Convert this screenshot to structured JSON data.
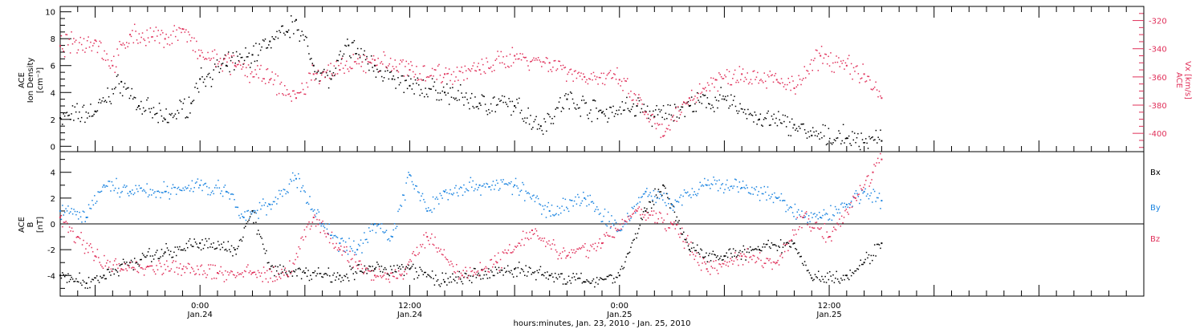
{
  "colors": {
    "black": "#000000",
    "blue": "#1b84e0",
    "red": "#e0305a",
    "axis": "#000000"
  },
  "xaxis": {
    "title": "hours:minutes, Jan. 23, 2010 - Jan. 25, 2010",
    "ticks": [
      {
        "time": "2010-01-24T00:00",
        "label1": "0:00",
        "label2": "Jan.24"
      },
      {
        "time": "2010-01-24T12:00",
        "label1": "12:00",
        "label2": "Jan.24"
      },
      {
        "time": "2010-01-25T00:00",
        "label1": "0:00",
        "label2": "Jan.25"
      },
      {
        "time": "2010-01-25T12:00",
        "label1": "12:00",
        "label2": "Jan.25"
      }
    ]
  },
  "chart_data": [
    {
      "type": "scatter",
      "panel": "top",
      "xrange": [
        "2010-01-23T16:00",
        "2010-01-26T06:00"
      ],
      "left_axis": {
        "label": [
          "ACE",
          "Ion Density",
          "[cm⁻³]"
        ],
        "range": [
          -0.4,
          10.4
        ],
        "ticks": [
          0,
          2,
          4,
          6,
          8,
          10
        ]
      },
      "right_axis": {
        "label": [
          "ACE",
          "Vx [km/s]"
        ],
        "range": [
          -413,
          -310
        ],
        "ticks": [
          -320,
          -340,
          -360,
          -380,
          -400
        ]
      },
      "series": [
        {
          "name": "",
          "axis": "left",
          "color": "black",
          "points": [
            [
              "2010-01-23T16:00",
              2.1
            ],
            [
              "2010-01-23T18:00",
              2.6
            ],
            [
              "2010-01-23T19:30",
              4.8
            ],
            [
              "2010-01-23T20:30",
              3.0
            ],
            [
              "2010-01-23T22:00",
              2.0
            ],
            [
              "2010-01-23T23:30",
              3.2
            ],
            [
              "2010-01-24T00:00",
              5.0
            ],
            [
              "2010-01-24T01:30",
              6.0
            ],
            [
              "2010-01-24T03:00",
              6.8
            ],
            [
              "2010-01-24T04:00",
              7.8
            ],
            [
              "2010-01-24T05:00",
              8.5
            ],
            [
              "2010-01-24T05:30",
              9.4
            ],
            [
              "2010-01-24T06:30",
              6.0
            ],
            [
              "2010-01-24T07:30",
              5.0
            ],
            [
              "2010-01-24T08:30",
              7.5
            ],
            [
              "2010-01-24T10:00",
              6.0
            ],
            [
              "2010-01-24T11:00",
              5.0
            ],
            [
              "2010-01-24T12:00",
              4.5
            ],
            [
              "2010-01-24T14:00",
              4.0
            ],
            [
              "2010-01-24T16:00",
              3.2
            ],
            [
              "2010-01-24T18:00",
              3.0
            ],
            [
              "2010-01-24T19:30",
              1.5
            ],
            [
              "2010-01-24T21:00",
              3.5
            ],
            [
              "2010-01-24T23:00",
              2.5
            ],
            [
              "2010-01-25T01:00",
              3.0
            ],
            [
              "2010-01-25T02:00",
              2.2
            ],
            [
              "2010-01-25T04:00",
              3.0
            ],
            [
              "2010-01-25T06:00",
              3.5
            ],
            [
              "2010-01-25T08:00",
              2.0
            ],
            [
              "2010-01-25T10:00",
              1.6
            ],
            [
              "2010-01-25T11:00",
              0.8
            ],
            [
              "2010-01-25T13:00",
              0.6
            ],
            [
              "2010-01-25T15:00",
              0.4
            ]
          ]
        },
        {
          "name": "",
          "axis": "right",
          "color": "red",
          "points": [
            [
              "2010-01-23T16:00",
              -338
            ],
            [
              "2010-01-23T18:00",
              -334
            ],
            [
              "2010-01-23T19:00",
              -352
            ],
            [
              "2010-01-23T20:00",
              -330
            ],
            [
              "2010-01-23T22:00",
              -333
            ],
            [
              "2010-01-23T23:00",
              -326
            ],
            [
              "2010-01-24T00:00",
              -345
            ],
            [
              "2010-01-24T02:00",
              -352
            ],
            [
              "2010-01-24T04:00",
              -362
            ],
            [
              "2010-01-24T05:30",
              -375
            ],
            [
              "2010-01-24T06:30",
              -358
            ],
            [
              "2010-01-24T08:00",
              -355
            ],
            [
              "2010-01-24T10:00",
              -348
            ],
            [
              "2010-01-24T12:00",
              -355
            ],
            [
              "2010-01-24T14:00",
              -358
            ],
            [
              "2010-01-24T16:00",
              -355
            ],
            [
              "2010-01-24T18:00",
              -345
            ],
            [
              "2010-01-24T20:00",
              -350
            ],
            [
              "2010-01-24T22:00",
              -360
            ],
            [
              "2010-01-25T00:00",
              -362
            ],
            [
              "2010-01-25T01:30",
              -385
            ],
            [
              "2010-01-25T02:30",
              -402
            ],
            [
              "2010-01-25T04:00",
              -375
            ],
            [
              "2010-01-25T05:30",
              -362
            ],
            [
              "2010-01-25T07:00",
              -358
            ],
            [
              "2010-01-25T09:00",
              -362
            ],
            [
              "2010-01-25T10:00",
              -368
            ],
            [
              "2010-01-25T11:30",
              -345
            ],
            [
              "2010-01-25T13:00",
              -352
            ],
            [
              "2010-01-25T14:00",
              -358
            ],
            [
              "2010-01-25T15:00",
              -375
            ]
          ]
        }
      ]
    },
    {
      "type": "scatter",
      "panel": "bottom",
      "xrange": [
        "2010-01-23T16:00",
        "2010-01-26T06:00"
      ],
      "left_axis": {
        "label": [
          "ACE",
          "B",
          "[nT]"
        ],
        "range": [
          -5.6,
          5.6
        ],
        "ticks": [
          4,
          2,
          0,
          -2,
          -4
        ]
      },
      "zero_line": true,
      "series": [
        {
          "name": "Bx",
          "color": "black",
          "points": [
            [
              "2010-01-23T16:00",
              -4.0
            ],
            [
              "2010-01-23T17:30",
              -4.6
            ],
            [
              "2010-01-23T18:30",
              -4.0
            ],
            [
              "2010-01-23T20:00",
              -3.0
            ],
            [
              "2010-01-23T22:00",
              -2.2
            ],
            [
              "2010-01-24T00:00",
              -1.5
            ],
            [
              "2010-01-24T02:00",
              -2.0
            ],
            [
              "2010-01-24T03:00",
              1.0
            ],
            [
              "2010-01-24T04:00",
              -3.5
            ],
            [
              "2010-01-24T06:00",
              -3.8
            ],
            [
              "2010-01-24T08:00",
              -4.0
            ],
            [
              "2010-01-24T10:00",
              -3.5
            ],
            [
              "2010-01-24T12:00",
              -3.5
            ],
            [
              "2010-01-24T14:00",
              -4.5
            ],
            [
              "2010-01-24T16:00",
              -4.0
            ],
            [
              "2010-01-24T18:00",
              -3.5
            ],
            [
              "2010-01-24T20:00",
              -4.0
            ],
            [
              "2010-01-24T22:00",
              -4.5
            ],
            [
              "2010-01-25T00:00",
              -4.0
            ],
            [
              "2010-01-25T01:30",
              1.0
            ],
            [
              "2010-01-25T02:30",
              3.0
            ],
            [
              "2010-01-25T04:00",
              -2.0
            ],
            [
              "2010-01-25T06:00",
              -2.5
            ],
            [
              "2010-01-25T08:00",
              -2.0
            ],
            [
              "2010-01-25T10:00",
              -1.5
            ],
            [
              "2010-01-25T11:00",
              -4.2
            ],
            [
              "2010-01-25T13:00",
              -4.0
            ],
            [
              "2010-01-25T14:00",
              -3.0
            ],
            [
              "2010-01-25T15:00",
              -1.5
            ]
          ]
        },
        {
          "name": "By",
          "color": "blue",
          "points": [
            [
              "2010-01-23T16:00",
              1.0
            ],
            [
              "2010-01-23T17:30",
              0.5
            ],
            [
              "2010-01-23T18:30",
              3.0
            ],
            [
              "2010-01-23T20:00",
              2.5
            ],
            [
              "2010-01-23T22:00",
              2.5
            ],
            [
              "2010-01-24T00:00",
              3.0
            ],
            [
              "2010-01-24T01:30",
              2.5
            ],
            [
              "2010-01-24T02:30",
              0.5
            ],
            [
              "2010-01-24T04:00",
              1.5
            ],
            [
              "2010-01-24T05:30",
              3.5
            ],
            [
              "2010-01-24T07:00",
              0.0
            ],
            [
              "2010-01-24T08:00",
              -1.5
            ],
            [
              "2010-01-24T09:00",
              -2.0
            ],
            [
              "2010-01-24T10:00",
              0.0
            ],
            [
              "2010-01-24T11:00",
              -1.0
            ],
            [
              "2010-01-24T12:00",
              3.8
            ],
            [
              "2010-01-24T13:00",
              1.0
            ],
            [
              "2010-01-24T14:00",
              2.5
            ],
            [
              "2010-01-24T16:00",
              3.0
            ],
            [
              "2010-01-24T18:00",
              3.0
            ],
            [
              "2010-01-24T20:00",
              1.0
            ],
            [
              "2010-01-24T22:00",
              2.0
            ],
            [
              "2010-01-25T00:00",
              -0.5
            ],
            [
              "2010-01-25T01:30",
              2.5
            ],
            [
              "2010-01-25T03:00",
              1.5
            ],
            [
              "2010-01-25T05:00",
              3.0
            ],
            [
              "2010-01-25T07:00",
              2.8
            ],
            [
              "2010-01-25T09:00",
              2.0
            ],
            [
              "2010-01-25T10:30",
              0.5
            ],
            [
              "2010-01-25T11:30",
              0.5
            ],
            [
              "2010-01-25T13:00",
              1.5
            ],
            [
              "2010-01-25T14:00",
              2.5
            ],
            [
              "2010-01-25T15:00",
              1.8
            ]
          ]
        },
        {
          "name": "Bz",
          "color": "red",
          "points": [
            [
              "2010-01-23T16:00",
              0.5
            ],
            [
              "2010-01-23T17:00",
              -1.0
            ],
            [
              "2010-01-23T18:00",
              -2.5
            ],
            [
              "2010-01-23T19:30",
              -3.5
            ],
            [
              "2010-01-23T21:00",
              -3.3
            ],
            [
              "2010-01-23T23:00",
              -3.5
            ],
            [
              "2010-01-24T01:00",
              -3.8
            ],
            [
              "2010-01-24T03:00",
              -3.8
            ],
            [
              "2010-01-24T05:00",
              -4.0
            ],
            [
              "2010-01-24T06:30",
              0.5
            ],
            [
              "2010-01-24T08:00",
              -2.0
            ],
            [
              "2010-01-24T10:00",
              -4.0
            ],
            [
              "2010-01-24T11:30",
              -4.0
            ],
            [
              "2010-01-24T13:00",
              -1.0
            ],
            [
              "2010-01-24T15:00",
              -4.0
            ],
            [
              "2010-01-24T17:00",
              -3.0
            ],
            [
              "2010-01-24T19:00",
              -0.5
            ],
            [
              "2010-01-24T21:00",
              -2.5
            ],
            [
              "2010-01-24T23:00",
              -1.5
            ],
            [
              "2010-01-25T01:00",
              1.0
            ],
            [
              "2010-01-25T03:00",
              0.0
            ],
            [
              "2010-01-25T05:00",
              -3.5
            ],
            [
              "2010-01-25T07:00",
              -2.5
            ],
            [
              "2010-01-25T09:00",
              -3.0
            ],
            [
              "2010-01-25T10:30",
              0.5
            ],
            [
              "2010-01-25T12:00",
              -1.0
            ],
            [
              "2010-01-25T13:30",
              2.0
            ],
            [
              "2010-01-25T14:30",
              4.0
            ],
            [
              "2010-01-25T15:00",
              5.0
            ]
          ]
        }
      ]
    }
  ]
}
